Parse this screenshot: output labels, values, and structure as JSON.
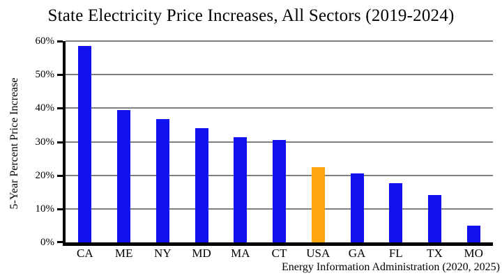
{
  "title": "State Electricity Price Increases, All Sectors (2019-2024)",
  "y_axis_label": "5-Year Percent Price Increase",
  "source_note": "Energy Information Administration (2020, 2025)",
  "colors": {
    "bar": "#1212f0",
    "highlight": "#ffa50f",
    "gridline": "#808080",
    "axis": "#000000"
  },
  "chart_data": {
    "type": "bar",
    "title": "State Electricity Price Increases, All Sectors (2019-2024)",
    "categories": [
      "CA",
      "ME",
      "NY",
      "MD",
      "MA",
      "CT",
      "USA",
      "GA",
      "FL",
      "TX",
      "MO"
    ],
    "values": [
      58.5,
      39.4,
      36.8,
      34.1,
      31.3,
      30.6,
      22.5,
      20.6,
      17.6,
      14.2,
      5.0
    ],
    "xlabel": "",
    "ylabel": "5-Year Percent Price Increase",
    "ylim": [
      0,
      60
    ],
    "yticks": [
      0,
      10,
      20,
      30,
      40,
      50,
      60
    ],
    "ytick_labels": [
      "0%",
      "10%",
      "20%",
      "30%",
      "40%",
      "50%",
      "60%"
    ],
    "grid": true,
    "legend": false,
    "bar_color": "#1212f0",
    "highlight_category": "USA",
    "highlight_color": "#ffa50f",
    "annotation": "Energy Information Administration (2020, 2025)"
  }
}
